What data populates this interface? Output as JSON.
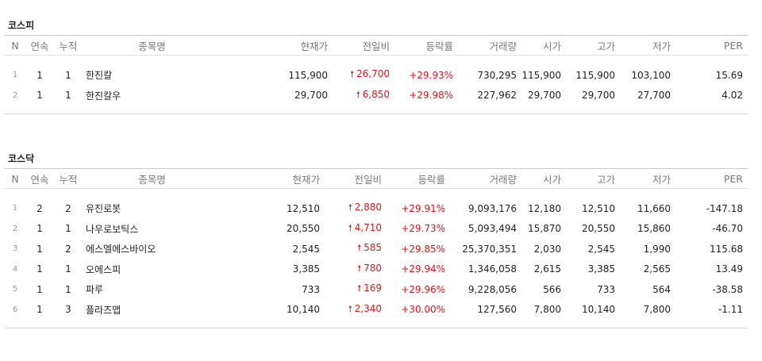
{
  "columns": [
    "N",
    "연속",
    "누적",
    "종목명",
    "현재가",
    "전일비",
    "등락률",
    "거래량",
    "시가",
    "고가",
    "저가",
    "PER"
  ],
  "kospi": {
    "title": "코스피",
    "rows": [
      {
        "n": "1",
        "streak": "1",
        "total": "1",
        "name": "한진칼",
        "price": "115,900",
        "change": "26,700",
        "rate": "+29.93%",
        "volume": "730,295",
        "open": "115,900",
        "high": "115,900",
        "low": "103,100",
        "per": "15.69"
      },
      {
        "n": "2",
        "streak": "1",
        "total": "1",
        "name": "한진칼우",
        "price": "29,700",
        "change": "6,850",
        "rate": "+29.98%",
        "volume": "227,962",
        "open": "29,700",
        "high": "29,700",
        "low": "27,700",
        "per": "4.02"
      }
    ]
  },
  "kosdaq": {
    "title": "코스닥",
    "rows": [
      {
        "n": "1",
        "streak": "2",
        "total": "2",
        "name": "유진로봇",
        "price": "12,510",
        "change": "2,880",
        "rate": "+29.91%",
        "volume": "9,093,176",
        "open": "12,180",
        "high": "12,510",
        "low": "11,660",
        "per": "-147.18"
      },
      {
        "n": "2",
        "streak": "1",
        "total": "1",
        "name": "나우로보틱스",
        "price": "20,550",
        "change": "4,710",
        "rate": "+29.73%",
        "volume": "5,093,494",
        "open": "15,870",
        "high": "20,550",
        "low": "15,860",
        "per": "-46.70"
      },
      {
        "n": "3",
        "streak": "1",
        "total": "2",
        "name": "에스엘에스바이오",
        "price": "2,545",
        "change": "585",
        "rate": "+29.85%",
        "volume": "25,370,351",
        "open": "2,030",
        "high": "2,545",
        "low": "1,990",
        "per": "115.68"
      },
      {
        "n": "4",
        "streak": "1",
        "total": "1",
        "name": "오에스피",
        "price": "3,385",
        "change": "780",
        "rate": "+29.94%",
        "volume": "1,346,058",
        "open": "2,615",
        "high": "3,385",
        "low": "2,565",
        "per": "13.49"
      },
      {
        "n": "5",
        "streak": "1",
        "total": "1",
        "name": "파루",
        "price": "733",
        "change": "169",
        "rate": "+29.96%",
        "volume": "9,228,056",
        "open": "566",
        "high": "733",
        "low": "564",
        "per": "-38.58"
      },
      {
        "n": "6",
        "streak": "1",
        "total": "3",
        "name": "플라즈맵",
        "price": "10,140",
        "change": "2,340",
        "rate": "+30.00%",
        "volume": "127,560",
        "open": "7,800",
        "high": "10,140",
        "low": "7,800",
        "per": "-1.11"
      }
    ]
  },
  "colors": {
    "up": "#e0151b",
    "header_text": "#7a7a7a",
    "border": "#c8c8c8"
  },
  "icons": {
    "change_arrow": "up-arrow-icon"
  }
}
